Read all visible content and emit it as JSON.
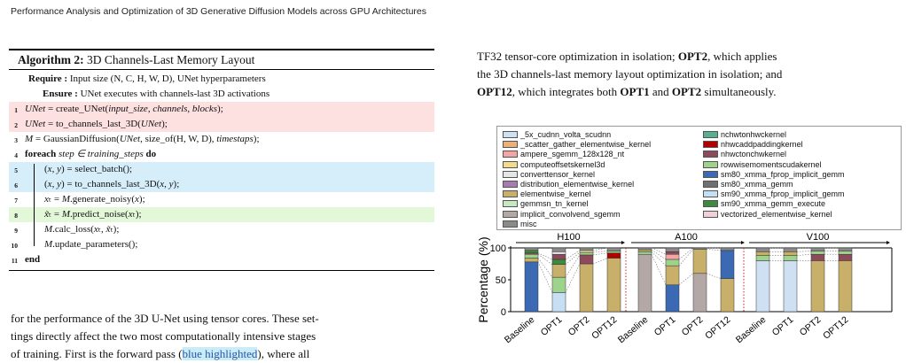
{
  "header": {
    "running_title": "Performance Analysis and Optimization of 3D Generative Diffusion Models across GPU Architectures"
  },
  "algorithm": {
    "label": "Algorithm 2:",
    "title": "3D Channels-Last Memory Layout",
    "require_kw": "Require :",
    "require_text": "Input size (N, C, H, W, D), UNet hyperparameters",
    "ensure_kw": "Ensure :",
    "ensure_text": "UNet executes with channels-last 3D activations",
    "lines": [
      {
        "n": "1",
        "text": "UNet = create_UNet(input_size, channels, blocks);",
        "hl": "red"
      },
      {
        "n": "2",
        "text": "UNet = to_channels_last_3D(UNet);",
        "hl": "red"
      },
      {
        "n": "3",
        "text": "M = GaussianDiffusion(UNet, size_of(H, W, D), timestaps);",
        "hl": ""
      },
      {
        "n": "4",
        "kw": "foreach",
        "text": "step ∈ training_steps",
        "kw2": "do",
        "hl": ""
      },
      {
        "n": "5",
        "text": "(x, y) = select_batch();",
        "hl": "blue"
      },
      {
        "n": "6",
        "text": "(x, y) = to_channels_last_3D(x, y);",
        "hl": "blue"
      },
      {
        "n": "7",
        "text": "xₜ = M.generate_noisy(x);",
        "hl": ""
      },
      {
        "n": "8",
        "text": "x̃ₜ = M.predict_noise(xₜ);",
        "hl": "green"
      },
      {
        "n": "9",
        "text": "M.calc_loss(xₜ, x̃ₜ);",
        "hl": ""
      },
      {
        "n": "10",
        "text": "M.update_parameters();",
        "hl": ""
      },
      {
        "n": "11",
        "kw": "end",
        "text": "",
        "hl": ""
      }
    ]
  },
  "left_paragraph": {
    "line1": "for the performance of the 3D U-Net using tensor cores. These set-",
    "line2": "tings directly affect the two most computationally intensive stages",
    "line3_a": "of training. First is the forward pass (",
    "line3_hl": "blue highlighted",
    "line3_b": "), where all"
  },
  "right_paragraph": {
    "l1_a": "TF32 tensor-core optimization in isolation; ",
    "opt2": "OPT2",
    "l1_b": ", which applies",
    "l2": "the 3D channels-last memory layout optimization in isolation; and",
    "opt12": "OPT12",
    "l3_a": ", which integrates both ",
    "opt1": "OPT1",
    "l3_and": " and ",
    "l3_end": " simultaneously."
  },
  "chart_data": {
    "type": "bar",
    "stacked": true,
    "ylabel": "Percentage (%)",
    "ylim": [
      0,
      100
    ],
    "yticks": [
      "0",
      "50",
      "100"
    ],
    "groups": [
      "H100",
      "A100",
      "V100"
    ],
    "categories": [
      "Baseline",
      "OPT1",
      "OPT2",
      "OPT12"
    ],
    "legend": [
      {
        "name": "_5x_cudnn_volta_scudnn",
        "color": "#cfe0f2"
      },
      {
        "name": "nchwtonhwckernel",
        "color": "#58b08f"
      },
      {
        "name": "_scatter_gather_elementwise_kernel",
        "color": "#e8b27a"
      },
      {
        "name": "nhwcaddpaddingkernel",
        "color": "#b00000"
      },
      {
        "name": "ampere_sgemm_128x128_nt",
        "color": "#f4a6a6"
      },
      {
        "name": "nhwctonchwkernel",
        "color": "#8c4a5a"
      },
      {
        "name": "computeoffsetskernel3d",
        "color": "#f2dc8c"
      },
      {
        "name": "rowwisemomentscudakernel",
        "color": "#9ed38c"
      },
      {
        "name": "converttensor_kernel",
        "color": "#e6e6e6"
      },
      {
        "name": "sm80_xmma_fprop_implicit_gemm",
        "color": "#3b69b4"
      },
      {
        "name": "distribution_elementwise_kernel",
        "color": "#a77bb0"
      },
      {
        "name": "sm80_xmma_gemm",
        "color": "#707070"
      },
      {
        "name": "elementwise_kernel",
        "color": "#c8b06a"
      },
      {
        "name": "sm90_xmma_fprop_implicit_gemm",
        "color": "#c6dff2"
      },
      {
        "name": "gemmsn_tn_kernel",
        "color": "#c7e8c0"
      },
      {
        "name": "sm90_xmma_gemm_execute",
        "color": "#3e8a3e"
      },
      {
        "name": "implicit_convolvend_sgemm",
        "color": "#b4a8a6"
      },
      {
        "name": "vectorized_elementwise_kernel",
        "color": "#f2d0d8"
      },
      {
        "name": "misc",
        "color": "#8a8a8a"
      }
    ],
    "bars": [
      {
        "group": "H100",
        "category": "Baseline",
        "segments": [
          [
            "sm80_xmma_fprop_implicit_gemm",
            78
          ],
          [
            "elementwise_kernel",
            6
          ],
          [
            "rowwisemomentscudakernel",
            6
          ],
          [
            "nhwctonchwkernel",
            2
          ],
          [
            "sm90_xmma_gemm_execute",
            4
          ],
          [
            "misc",
            4
          ]
        ]
      },
      {
        "group": "H100",
        "category": "OPT1",
        "segments": [
          [
            "sm90_xmma_fprop_implicit_gemm",
            30
          ],
          [
            "rowwisemomentscudakernel",
            24
          ],
          [
            "elementwise_kernel",
            20
          ],
          [
            "sm90_xmma_gemm_execute",
            8
          ],
          [
            "nhwctonchwkernel",
            8
          ],
          [
            "converttensor_kernel",
            4
          ],
          [
            "misc",
            6
          ]
        ]
      },
      {
        "group": "H100",
        "category": "OPT2",
        "segments": [
          [
            "elementwise_kernel",
            75
          ],
          [
            "nhwctonchwkernel",
            14
          ],
          [
            "rowwisemomentscudakernel",
            4
          ],
          [
            "computeoffsetskernel3d",
            3
          ],
          [
            "misc",
            4
          ]
        ]
      },
      {
        "group": "H100",
        "category": "OPT12",
        "segments": [
          [
            "elementwise_kernel",
            84
          ],
          [
            "nhwcaddpaddingkernel",
            8
          ],
          [
            "rowwisemomentscudakernel",
            3
          ],
          [
            "misc",
            5
          ]
        ]
      },
      {
        "group": "A100",
        "category": "Baseline",
        "segments": [
          [
            "implicit_convolvend_sgemm",
            90
          ],
          [
            "rowwisemomentscudakernel",
            4
          ],
          [
            "elementwise_kernel",
            3
          ],
          [
            "misc",
            3
          ]
        ]
      },
      {
        "group": "A100",
        "category": "OPT1",
        "segments": [
          [
            "sm80_xmma_fprop_implicit_gemm",
            42
          ],
          [
            "elementwise_kernel",
            30
          ],
          [
            "rowwisemomentscudakernel",
            10
          ],
          [
            "ampere_sgemm_128x128_nt",
            8
          ],
          [
            "nhwctonchwkernel",
            4
          ],
          [
            "misc",
            6
          ]
        ]
      },
      {
        "group": "A100",
        "category": "OPT2",
        "segments": [
          [
            "implicit_convolvend_sgemm",
            60
          ],
          [
            "elementwise_kernel",
            38
          ],
          [
            "misc",
            2
          ]
        ]
      },
      {
        "group": "A100",
        "category": "OPT12",
        "segments": [
          [
            "elementwise_kernel",
            52
          ],
          [
            "sm80_xmma_fprop_implicit_gemm",
            44
          ],
          [
            "misc",
            4
          ]
        ]
      },
      {
        "group": "V100",
        "category": "Baseline",
        "segments": [
          [
            "_5x_cudnn_volta_scudnn",
            80
          ],
          [
            "rowwisemomentscudakernel",
            8
          ],
          [
            "elementwise_kernel",
            6
          ],
          [
            "misc",
            6
          ]
        ]
      },
      {
        "group": "V100",
        "category": "OPT1",
        "segments": [
          [
            "_5x_cudnn_volta_scudnn",
            80
          ],
          [
            "rowwisemomentscudakernel",
            8
          ],
          [
            "elementwise_kernel",
            6
          ],
          [
            "misc",
            6
          ]
        ]
      },
      {
        "group": "V100",
        "category": "OPT2",
        "segments": [
          [
            "elementwise_kernel",
            80
          ],
          [
            "nhwctonchwkernel",
            10
          ],
          [
            "rowwisemomentscudakernel",
            5
          ],
          [
            "misc",
            5
          ]
        ]
      },
      {
        "group": "V100",
        "category": "OPT12",
        "segments": [
          [
            "elementwise_kernel",
            80
          ],
          [
            "nhwctonchwkernel",
            10
          ],
          [
            "rowwisemomentscudakernel",
            5
          ],
          [
            "misc",
            5
          ]
        ]
      }
    ]
  }
}
